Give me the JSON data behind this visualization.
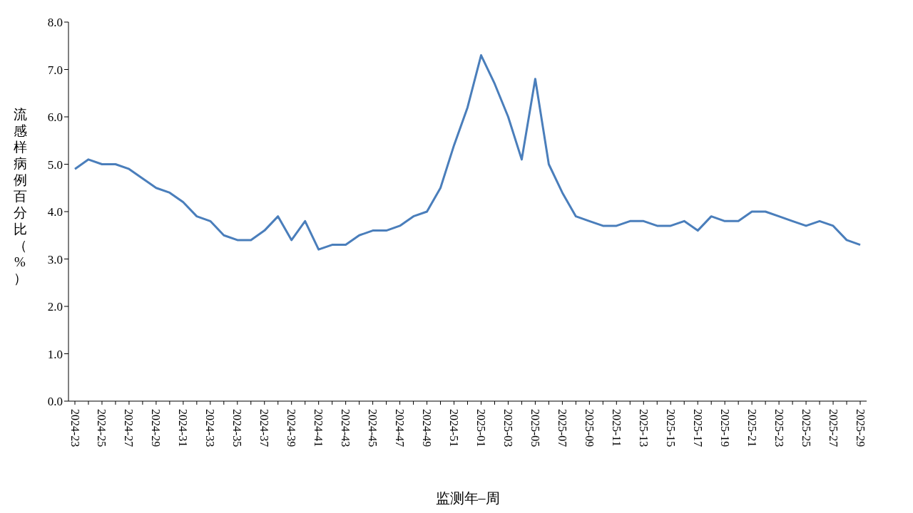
{
  "chart_data": {
    "type": "line",
    "xlabel": "监测年–周",
    "ylabel": "流感样病例百分比（%）",
    "categories": [
      "2024-23",
      null,
      "2024-25",
      null,
      "2024-27",
      null,
      "2024-29",
      null,
      "2024-31",
      null,
      "2024-33",
      null,
      "2024-35",
      null,
      "2024-37",
      null,
      "2024-39",
      null,
      "2024-41",
      null,
      "2024-43",
      null,
      "2024-45",
      null,
      "2024-47",
      null,
      "2024-49",
      null,
      "2024-51",
      null,
      "2025-01",
      null,
      "2025-03",
      null,
      "2025-05",
      null,
      "2025-07",
      null,
      "2025-09",
      null,
      "2025-11",
      null,
      "2025-13",
      null,
      "2025-15",
      null,
      "2025-17",
      null,
      "2025-19",
      null,
      "2025-21",
      null,
      "2025-23",
      null,
      "2025-25",
      null,
      "2025-27",
      null,
      "2025-29"
    ],
    "series": [
      {
        "color": "#4a7ebb",
        "values": [
          4.9,
          5.1,
          5.0,
          5.0,
          4.9,
          4.7,
          4.5,
          4.4,
          4.2,
          3.9,
          3.8,
          3.5,
          3.4,
          3.4,
          3.6,
          3.9,
          3.4,
          3.8,
          3.2,
          3.3,
          3.3,
          3.5,
          3.6,
          3.6,
          3.7,
          3.9,
          4.0,
          4.5,
          5.4,
          6.2,
          7.3,
          6.7,
          6.0,
          5.1,
          6.8,
          5.0,
          4.4,
          3.9,
          3.8,
          3.7,
          3.7,
          3.8,
          3.8,
          3.7,
          3.7,
          3.8,
          3.6,
          3.9,
          3.8,
          3.8,
          4.0,
          4.0,
          3.9,
          3.8,
          3.7,
          3.8,
          3.7,
          3.4,
          3.3
        ]
      }
    ],
    "ylim": [
      0,
      8
    ],
    "yticks": [
      {
        "value": 0,
        "label": "0.0"
      },
      {
        "value": 1,
        "label": "1.0"
      },
      {
        "value": 2,
        "label": "2.0"
      },
      {
        "value": 3,
        "label": "3.0"
      },
      {
        "value": 4,
        "label": "4.0"
      },
      {
        "value": 5,
        "label": "5.0"
      },
      {
        "value": 6,
        "label": "6.0"
      },
      {
        "value": 7,
        "label": "7.0"
      },
      {
        "value": 8,
        "label": "8.0"
      }
    ],
    "marker": "none"
  }
}
